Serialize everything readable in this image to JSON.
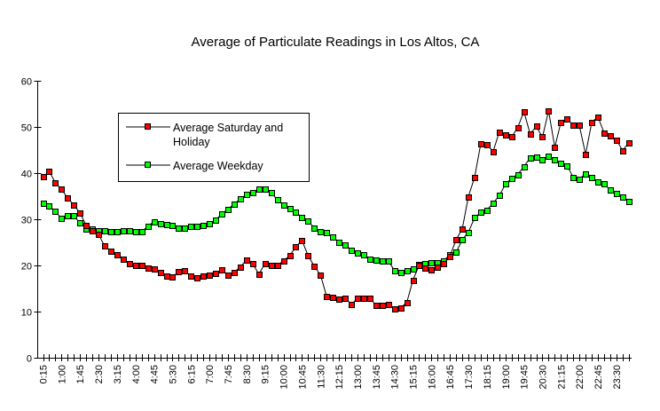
{
  "chart_data": {
    "type": "line",
    "title": "Average of Particulate Readings in Los Altos, CA",
    "xlabel": "",
    "ylabel": "",
    "ylim": [
      0,
      60
    ],
    "y_ticks": [
      0,
      10,
      20,
      30,
      40,
      50,
      60
    ],
    "x_interval_minutes": 15,
    "x_tick_labels": [
      "0:15",
      "1:00",
      "1:45",
      "2:30",
      "3:15",
      "4:00",
      "4:45",
      "5:30",
      "6:15",
      "7:00",
      "7:45",
      "8:30",
      "9:15",
      "10:00",
      "10:45",
      "11:30",
      "12:15",
      "13:00",
      "13:45",
      "14:30",
      "15:15",
      "16:00",
      "16:45",
      "17:30",
      "18:15",
      "19:00",
      "19:45",
      "20:30",
      "21:15",
      "22:00",
      "22:45",
      "23:30"
    ],
    "grid": false,
    "legend_position": "upper-left inside plot",
    "series": [
      {
        "name": "Average Saturday and Holiday",
        "color": "#ff0000",
        "values": [
          39.2,
          40.4,
          37.9,
          36.5,
          34.6,
          33.1,
          31.3,
          28.7,
          27.5,
          26.7,
          24.2,
          23.1,
          22.3,
          21.3,
          20.4,
          20,
          20,
          19.4,
          19.2,
          18.5,
          17.7,
          17.5,
          18.7,
          18.8,
          17.7,
          17.3,
          17.7,
          17.9,
          18.3,
          19.1,
          17.9,
          18.5,
          19.7,
          21.2,
          20.4,
          18.1,
          20.4,
          20,
          20,
          21,
          22.1,
          24,
          25.4,
          22.1,
          19.8,
          17.9,
          13.3,
          13.1,
          12.7,
          12.9,
          11.6,
          12.8,
          12.8,
          12.9,
          11.4,
          11.4,
          11.6,
          10.6,
          10.8,
          12,
          16.8,
          20,
          19.5,
          19.1,
          19.7,
          20.3,
          22,
          25.6,
          27.9,
          34.9,
          39.1,
          46.4,
          46.2,
          44.7,
          48.9,
          48.3,
          47.8,
          49.9,
          53.3,
          48.5,
          50.1,
          47.8,
          53.5,
          45.6,
          51,
          51.8,
          50.3,
          50.3,
          44.1,
          51,
          52.2,
          48.7,
          48.1,
          47.2,
          44.9,
          46.6
        ]
      },
      {
        "name": "Average Weekday",
        "color": "#00ff00",
        "values": [
          33.5,
          32.9,
          31.7,
          30.2,
          30.7,
          30.7,
          29.2,
          27.9,
          27.9,
          27.5,
          27.5,
          27.3,
          27.3,
          27.5,
          27.5,
          27.3,
          27.3,
          28.5,
          29.5,
          29.1,
          28.8,
          28.7,
          28.1,
          28.1,
          28.5,
          28.5,
          28.7,
          29,
          29.8,
          31.2,
          32.2,
          33.3,
          34.4,
          35.4,
          35.8,
          36.5,
          36.5,
          35.8,
          34.2,
          33.1,
          32.3,
          31.5,
          30.4,
          29.6,
          28.1,
          27.3,
          27.1,
          26.2,
          25,
          24.5,
          23.3,
          22.6,
          22.4,
          21.4,
          21.2,
          21,
          21,
          18.9,
          18.5,
          18.9,
          19.3,
          20.1,
          20.3,
          20.6,
          20.6,
          21,
          22.4,
          22.8,
          25.6,
          27.2,
          30.3,
          31.5,
          32,
          33.5,
          35.1,
          37.6,
          38.9,
          39.7,
          41.4,
          43.3,
          43.5,
          42.9,
          43.7,
          42.8,
          42.2,
          41.6,
          39.1,
          38.7,
          39.9,
          39.1,
          38.1,
          37.6,
          36.4,
          35.6,
          34.9,
          33.9
        ]
      }
    ],
    "legend": {
      "entries": [
        {
          "line1": "Average Saturday and",
          "line2": "Holiday"
        },
        {
          "line1": "Average Weekday"
        }
      ]
    }
  }
}
